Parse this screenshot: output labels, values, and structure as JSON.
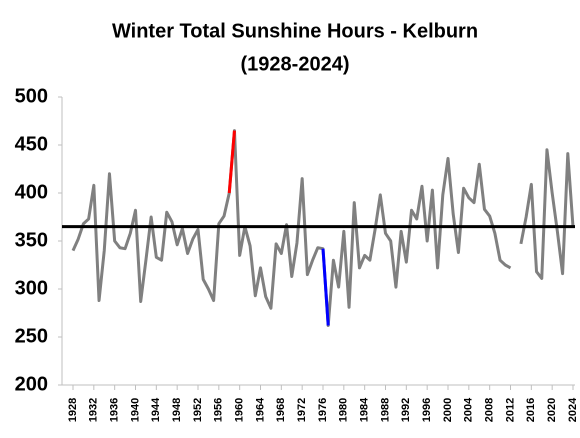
{
  "chart_data": {
    "type": "line",
    "title": "Winter Total Sunshine Hours - Kelburn",
    "subtitle": "(1928-2024)",
    "x": [
      1928,
      1929,
      1930,
      1931,
      1932,
      1933,
      1934,
      1935,
      1936,
      1937,
      1938,
      1939,
      1940,
      1941,
      1942,
      1943,
      1944,
      1945,
      1946,
      1947,
      1948,
      1949,
      1950,
      1951,
      1952,
      1953,
      1954,
      1955,
      1956,
      1957,
      1958,
      1959,
      1960,
      1961,
      1962,
      1963,
      1964,
      1965,
      1966,
      1967,
      1968,
      1969,
      1970,
      1971,
      1972,
      1973,
      1974,
      1975,
      1976,
      1977,
      1978,
      1979,
      1980,
      1981,
      1982,
      1983,
      1984,
      1985,
      1986,
      1987,
      1988,
      1989,
      1990,
      1991,
      1992,
      1993,
      1994,
      1995,
      1996,
      1997,
      1998,
      1999,
      2000,
      2001,
      2002,
      2003,
      2004,
      2005,
      2006,
      2007,
      2008,
      2009,
      2010,
      2011,
      2012,
      2013,
      2014,
      2015,
      2016,
      2017,
      2018,
      2019,
      2020,
      2021,
      2022,
      2023,
      2024
    ],
    "series": [
      {
        "color": "#808080",
        "values": [
          340,
          352,
          368,
          373,
          408,
          288,
          340,
          420,
          350,
          343,
          342,
          358,
          382,
          287,
          330,
          375,
          333,
          330,
          380,
          370,
          346,
          363,
          337,
          352,
          362,
          310,
          300,
          288,
          368,
          376,
          400,
          465,
          335,
          365,
          345,
          293,
          322,
          292,
          280,
          347,
          337,
          367,
          313,
          348,
          415,
          315,
          330,
          343,
          342,
          262,
          330,
          302,
          360,
          281,
          390,
          322,
          335,
          330,
          362,
          398,
          358,
          350,
          302,
          360,
          328,
          382,
          373,
          407,
          350,
          403,
          322,
          398,
          436,
          378,
          338,
          405,
          395,
          390,
          430,
          383,
          376,
          358,
          330,
          325,
          322,
          null,
          347,
          375,
          409,
          318,
          311,
          445,
          400,
          360,
          316,
          441,
          365
        ]
      },
      {
        "color": "#ff0000",
        "values": [
          null,
          null,
          null,
          null,
          null,
          null,
          null,
          null,
          null,
          null,
          null,
          null,
          null,
          null,
          null,
          null,
          null,
          null,
          null,
          null,
          null,
          null,
          null,
          null,
          null,
          null,
          null,
          null,
          null,
          null,
          400,
          465,
          null,
          null,
          null,
          null,
          null,
          null,
          null,
          null,
          null,
          null,
          null,
          null,
          null,
          null,
          null,
          null,
          null,
          null,
          null,
          null,
          null,
          null,
          null,
          null,
          null,
          null,
          null,
          null,
          null,
          null,
          null,
          null,
          null,
          null,
          null,
          null,
          null,
          null,
          null,
          null,
          null,
          null,
          null,
          null,
          null,
          null,
          null,
          null,
          null,
          null,
          null,
          null,
          null,
          null,
          null,
          null,
          null,
          null,
          null,
          null,
          null,
          null,
          null,
          null,
          null
        ]
      },
      {
        "color": "#0000ff",
        "values": [
          null,
          null,
          null,
          null,
          null,
          null,
          null,
          null,
          null,
          null,
          null,
          null,
          null,
          null,
          null,
          null,
          null,
          null,
          null,
          null,
          null,
          null,
          null,
          null,
          null,
          null,
          null,
          null,
          null,
          null,
          null,
          null,
          null,
          null,
          null,
          null,
          null,
          null,
          null,
          null,
          null,
          null,
          null,
          null,
          null,
          null,
          null,
          null,
          342,
          262,
          null,
          null,
          null,
          null,
          null,
          null,
          null,
          null,
          null,
          null,
          null,
          null,
          null,
          null,
          null,
          null,
          null,
          null,
          null,
          null,
          null,
          null,
          null,
          null,
          null,
          null,
          null,
          null,
          null,
          null,
          null,
          null,
          null,
          null,
          null,
          null,
          null,
          null,
          null,
          null,
          null,
          null,
          null,
          null,
          null,
          null,
          null
        ]
      }
    ],
    "mean_line": 365,
    "mean_color": "#000000",
    "xlim": [
      1928,
      2024
    ],
    "xticks": [
      1928,
      1932,
      1936,
      1940,
      1944,
      1948,
      1952,
      1956,
      1960,
      1964,
      1968,
      1972,
      1976,
      1980,
      1984,
      1988,
      1992,
      1996,
      2000,
      2004,
      2008,
      2012,
      2016,
      2020,
      2024
    ],
    "ylim": [
      200,
      500
    ],
    "yticks": [
      200,
      250,
      300,
      350,
      400,
      450,
      500
    ],
    "grid": false
  }
}
